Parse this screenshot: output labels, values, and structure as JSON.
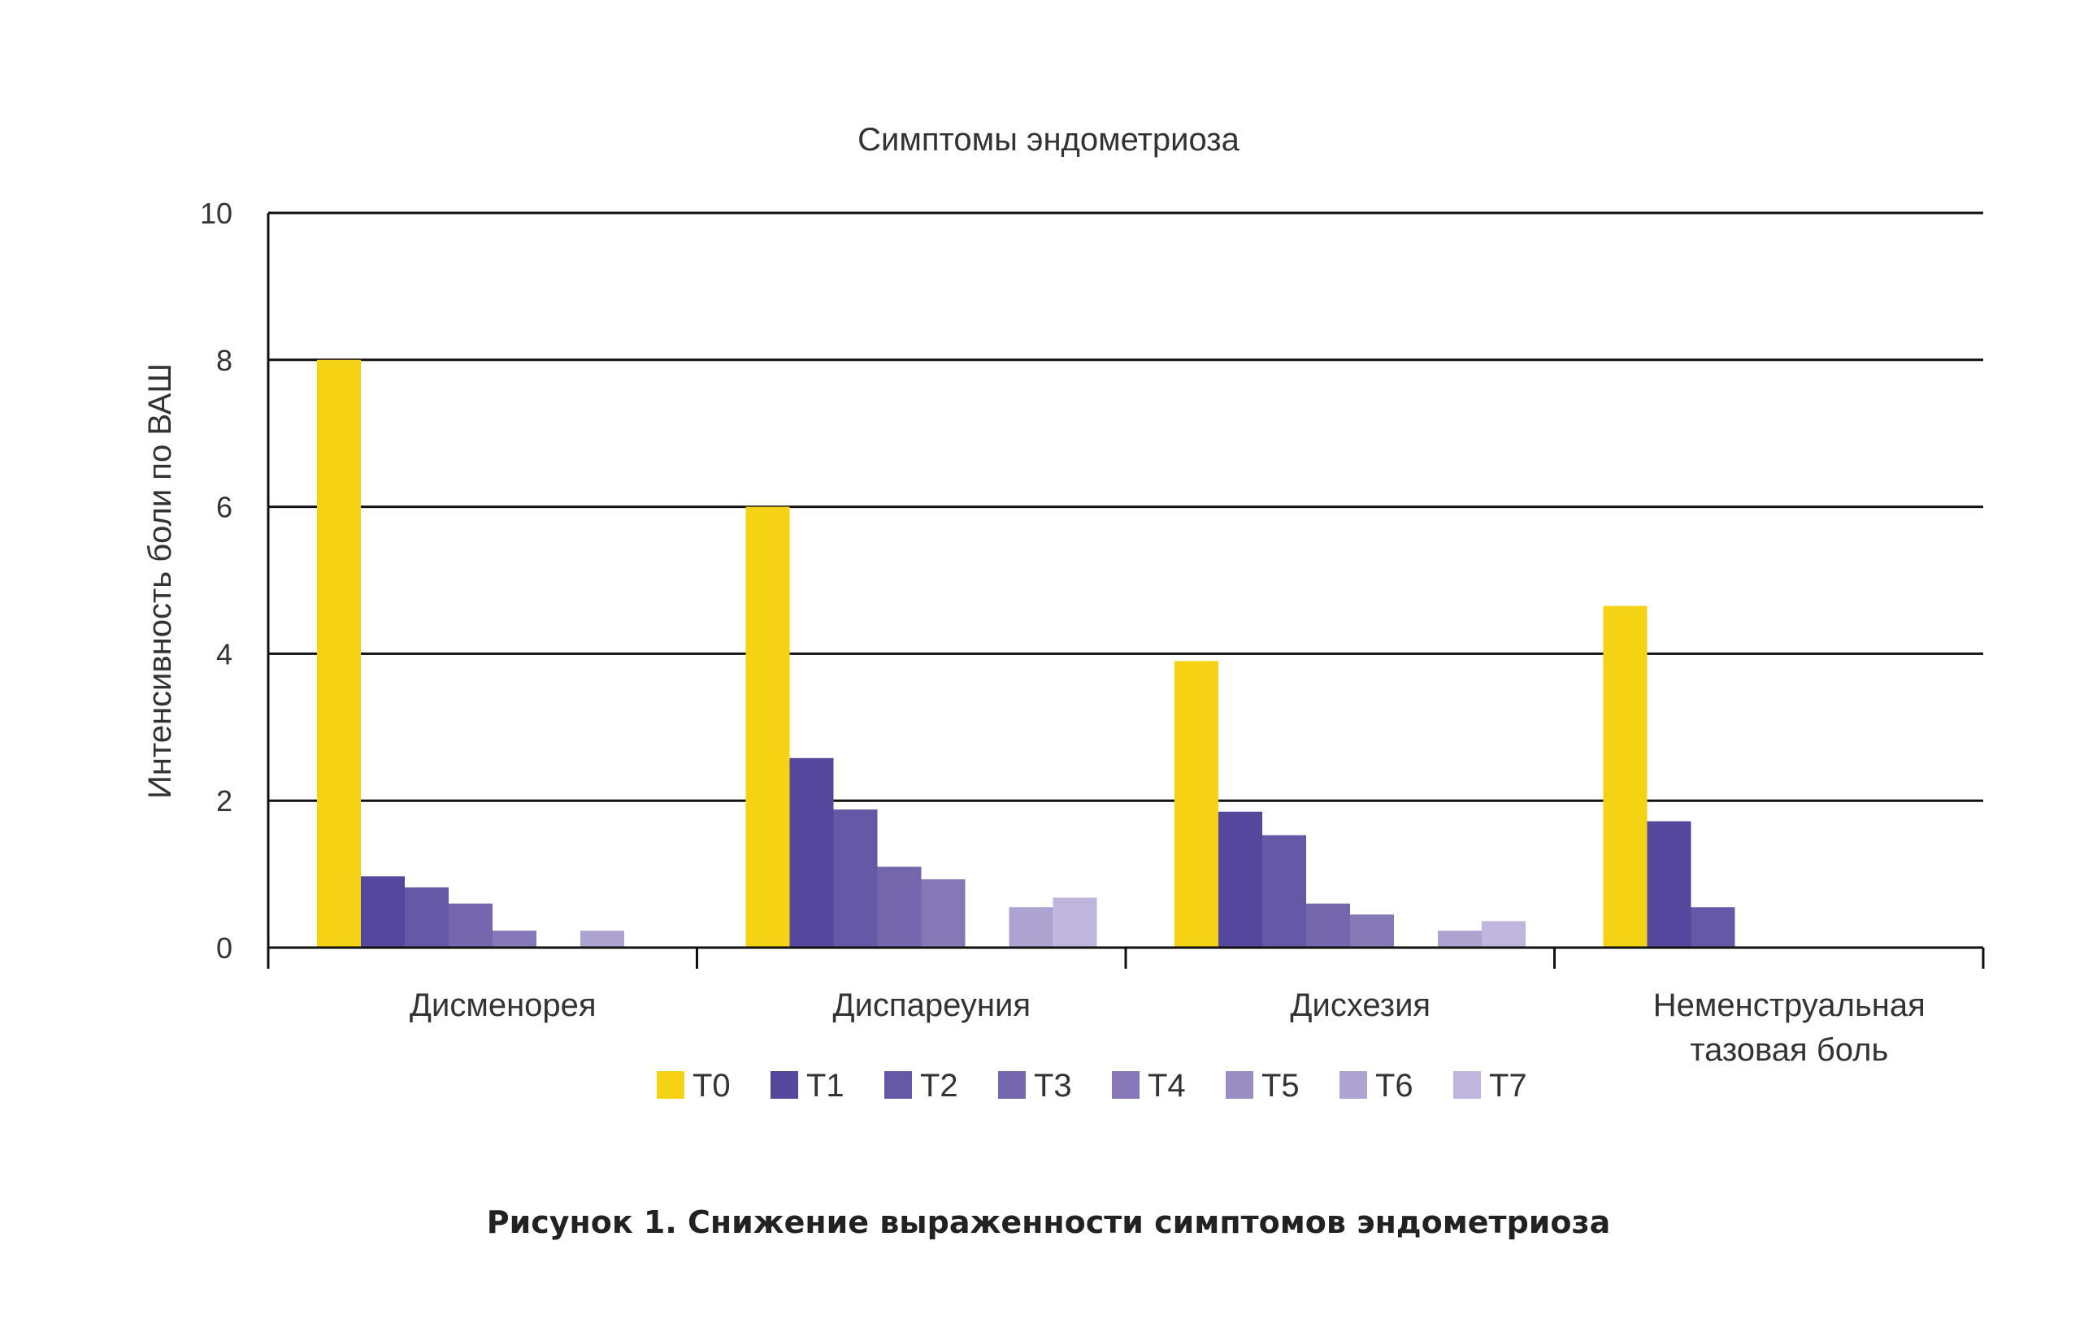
{
  "chart_data": {
    "type": "bar",
    "title": "Симптомы эндометриоза",
    "ylabel": "Интенсивность боли по ВАШ",
    "xlabel": "",
    "ylim": [
      0,
      10
    ],
    "yticks": [
      0,
      2,
      4,
      6,
      8,
      10
    ],
    "grid": true,
    "legend_position": "bottom",
    "categories": [
      [
        "Дисменорея"
      ],
      [
        "Диспареуния"
      ],
      [
        "Дисхезия"
      ],
      [
        "Неменструальная",
        "тазовая боль"
      ]
    ],
    "series": [
      {
        "name": "T0",
        "color": "#F5D314",
        "values": [
          8.0,
          6.0,
          3.9,
          4.65
        ]
      },
      {
        "name": "T1",
        "color": "#55479B",
        "values": [
          0.97,
          2.58,
          1.85,
          1.72
        ]
      },
      {
        "name": "T2",
        "color": "#6558A6",
        "values": [
          0.82,
          1.88,
          1.53,
          0.55
        ]
      },
      {
        "name": "T3",
        "color": "#7567AE",
        "values": [
          0.6,
          1.1,
          0.6,
          0
        ]
      },
      {
        "name": "T4",
        "color": "#8577B8",
        "values": [
          0.23,
          0.93,
          0.45,
          0
        ]
      },
      {
        "name": "T5",
        "color": "#9A8DC4",
        "values": [
          0,
          0,
          0,
          0
        ]
      },
      {
        "name": "T6",
        "color": "#ADA3D0",
        "values": [
          0.23,
          0.55,
          0.23,
          0
        ]
      },
      {
        "name": "T7",
        "color": "#BEB6DD",
        "values": [
          0,
          0.68,
          0.36,
          0
        ]
      }
    ]
  },
  "caption": "Рисунок 1. Снижение выраженности симптомов эндометриоза"
}
